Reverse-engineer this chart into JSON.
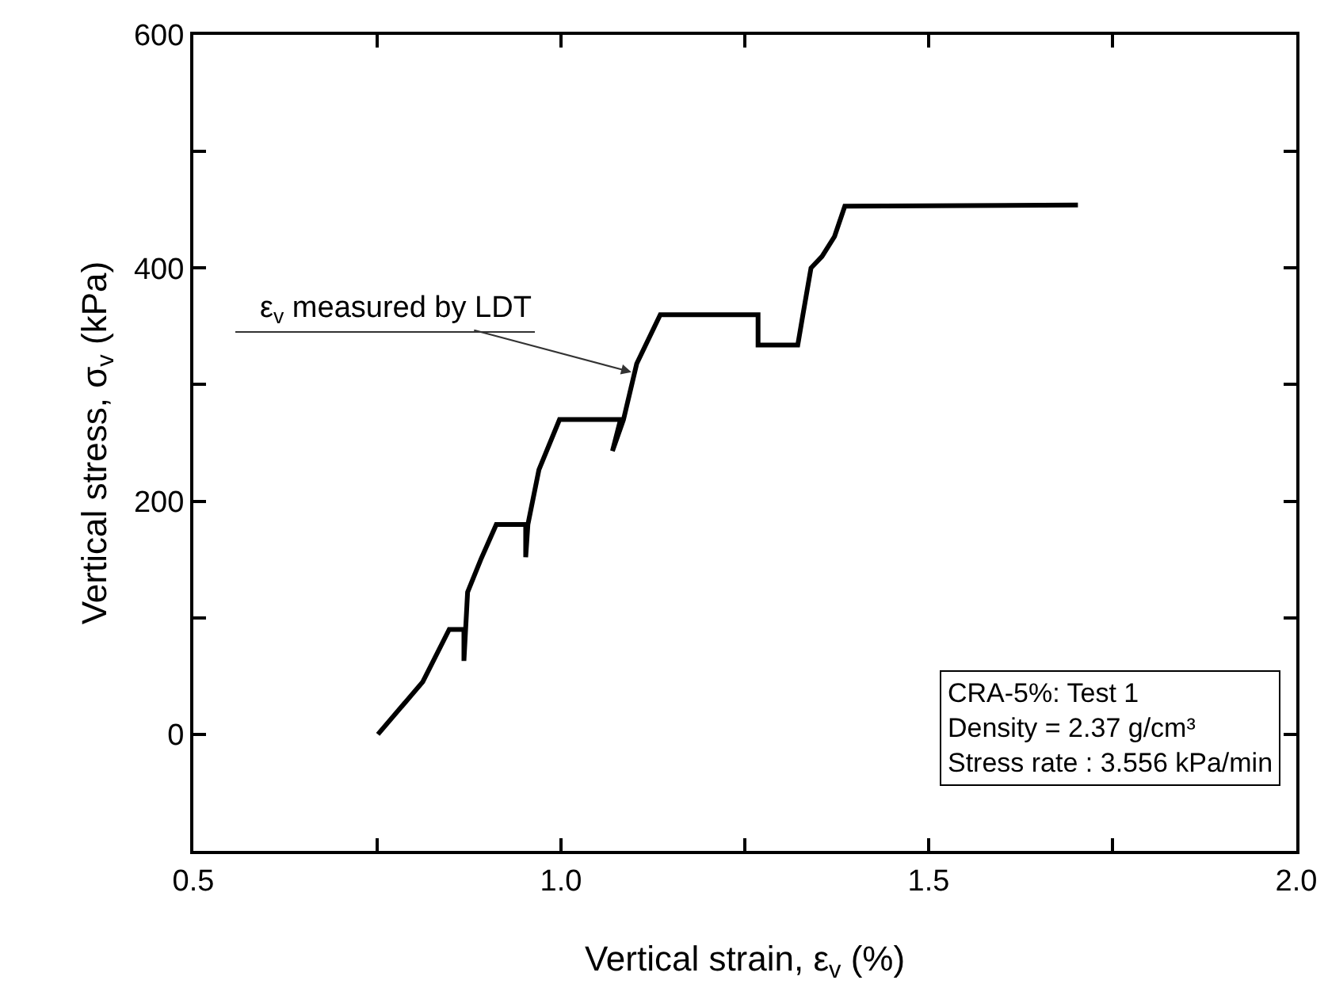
{
  "chart_data": {
    "type": "line",
    "xlabel": "Vertical strain, ε$_{v}$ (%)",
    "ylabel": "Vertical stress, σ$_{v}$ (kPa)",
    "series": [
      {
        "color": "#000000",
        "x": [
          0.751,
          0.812,
          0.848,
          0.868,
          0.868,
          0.873,
          0.891,
          0.912,
          0.952,
          0.952,
          0.955,
          0.97,
          0.998,
          1.081,
          1.07,
          1.085,
          1.103,
          1.135,
          1.268,
          1.268,
          1.322,
          1.329,
          1.34,
          1.355,
          1.372,
          1.386,
          1.703
        ],
        "values": [
          0,
          45,
          90,
          90,
          63,
          122,
          150,
          180,
          180,
          152,
          180,
          227,
          270,
          270,
          243,
          270,
          318,
          360,
          360,
          334,
          334,
          360,
          400,
          410,
          427,
          453,
          454
        ]
      }
    ],
    "xlim": [
      0.5,
      2.0
    ],
    "xticks": [
      0.5,
      {
        "value": 0.75,
        "label": null
      },
      {
        "value": 1.0,
        "label": "1.0"
      },
      {
        "value": 1.25,
        "label": null
      },
      1.5,
      {
        "value": 1.75,
        "label": null
      },
      {
        "value": 2.0,
        "label": "2.0"
      }
    ],
    "ylim": [
      -100,
      600
    ],
    "yticks": [
      0,
      {
        "value": 100,
        "label": null
      },
      200,
      {
        "value": 300,
        "label": null
      },
      400,
      {
        "value": 500,
        "label": null
      },
      600
    ],
    "annotations": [
      {
        "text": "ε$_{v}$ measured by LDT",
        "x": 1.1,
        "y": 310
      },
      "CRA-5%: Test 1",
      "Density = 2.37 g/cm³",
      "Stress rate : 3.556 kPa/min"
    ],
    "grid": false,
    "marker": "none",
    "line_style": "solid"
  }
}
